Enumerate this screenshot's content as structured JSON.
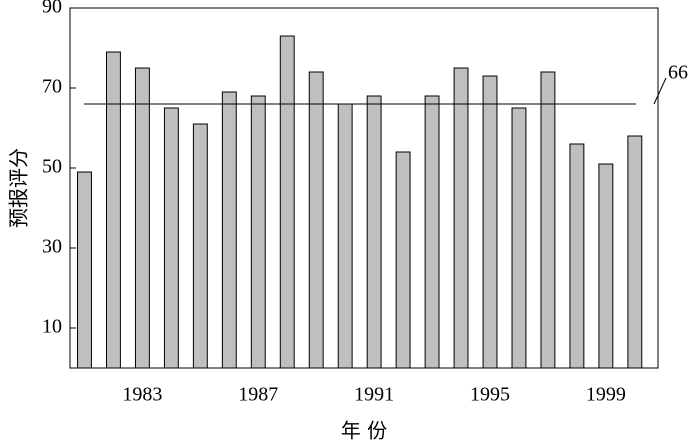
{
  "chart_data": {
    "type": "bar",
    "x": [
      1981,
      1982,
      1983,
      1984,
      1985,
      1986,
      1987,
      1988,
      1989,
      1990,
      1991,
      1992,
      1993,
      1994,
      1995,
      1996,
      1997,
      1998,
      1999,
      2000
    ],
    "values": [
      49,
      79,
      75,
      65,
      61,
      69,
      68,
      83,
      74,
      66,
      68,
      54,
      68,
      75,
      73,
      65,
      74,
      56,
      51,
      58
    ],
    "color": "#bfbfbf",
    "xlim": [
      1980.5,
      2000.8
    ],
    "xticks": [
      1983,
      1987,
      1991,
      1995,
      1999
    ],
    "ylim": [
      0,
      90
    ],
    "yticks": [
      10,
      30,
      50,
      70,
      90
    ],
    "xlabel": "年 份",
    "ylabel": "预报评分",
    "reference_line": 66,
    "grid": false
  }
}
